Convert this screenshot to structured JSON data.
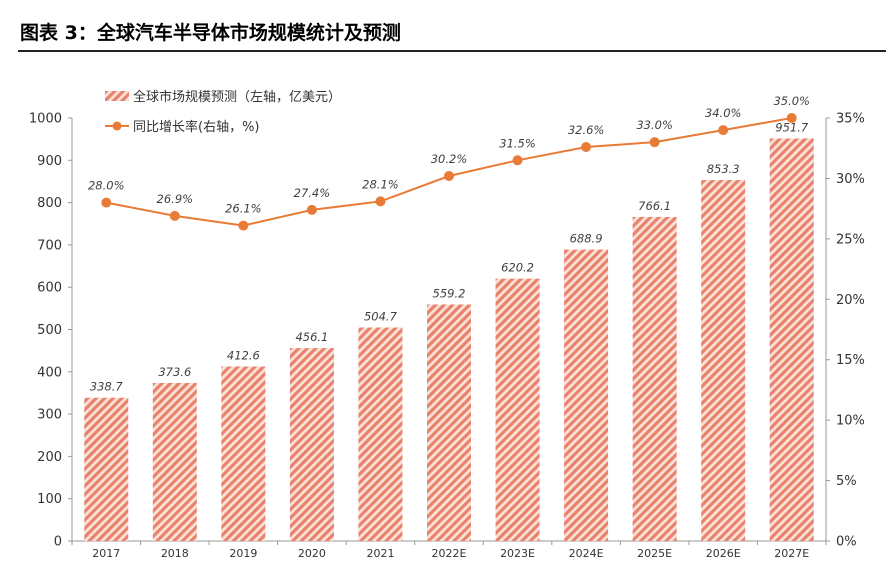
{
  "header": {
    "title": "图表 3：全球汽车半导体市场规模统计及预测"
  },
  "colors": {
    "bar": "#e8826c",
    "line": "#e87b35",
    "axis": "#999999"
  },
  "chart_data": {
    "type": "bar",
    "categories": [
      "2017",
      "2018",
      "2019",
      "2020",
      "2021",
      "2022E",
      "2023E",
      "2024E",
      "2025E",
      "2026E",
      "2027E"
    ],
    "series": [
      {
        "name": "全球市场规模预测（左轴，亿美元）",
        "type": "bar",
        "axis": "left",
        "values": [
          338.7,
          373.6,
          412.6,
          456.1,
          504.7,
          559.2,
          620.2,
          688.9,
          766.1,
          853.3,
          951.7
        ],
        "labels": [
          "338.7",
          "373.6",
          "412.6",
          "456.1",
          "504.7",
          "559.2",
          "620.2",
          "688.9",
          "766.1",
          "853.3",
          "951.7"
        ]
      },
      {
        "name": "同比增长率(右轴，%)",
        "type": "line",
        "axis": "right",
        "values": [
          28.0,
          26.9,
          26.1,
          27.4,
          28.1,
          30.2,
          31.5,
          32.6,
          33.0,
          34.0,
          35.0
        ],
        "labels": [
          "28.0%",
          "26.9%",
          "26.1%",
          "27.4%",
          "28.1%",
          "30.2%",
          "31.5%",
          "32.6%",
          "33.0%",
          "34.0%",
          "35.0%"
        ]
      }
    ],
    "ylim_left": [
      0,
      1000
    ],
    "yticks_left": [
      "0",
      "100",
      "200",
      "300",
      "400",
      "500",
      "600",
      "700",
      "800",
      "900",
      "1000"
    ],
    "ylim_right": [
      0,
      35
    ],
    "yticks_right": [
      "0%",
      "5%",
      "10%",
      "15%",
      "20%",
      "25%",
      "30%",
      "35%"
    ],
    "legend_position": "top-left",
    "grid": false
  }
}
